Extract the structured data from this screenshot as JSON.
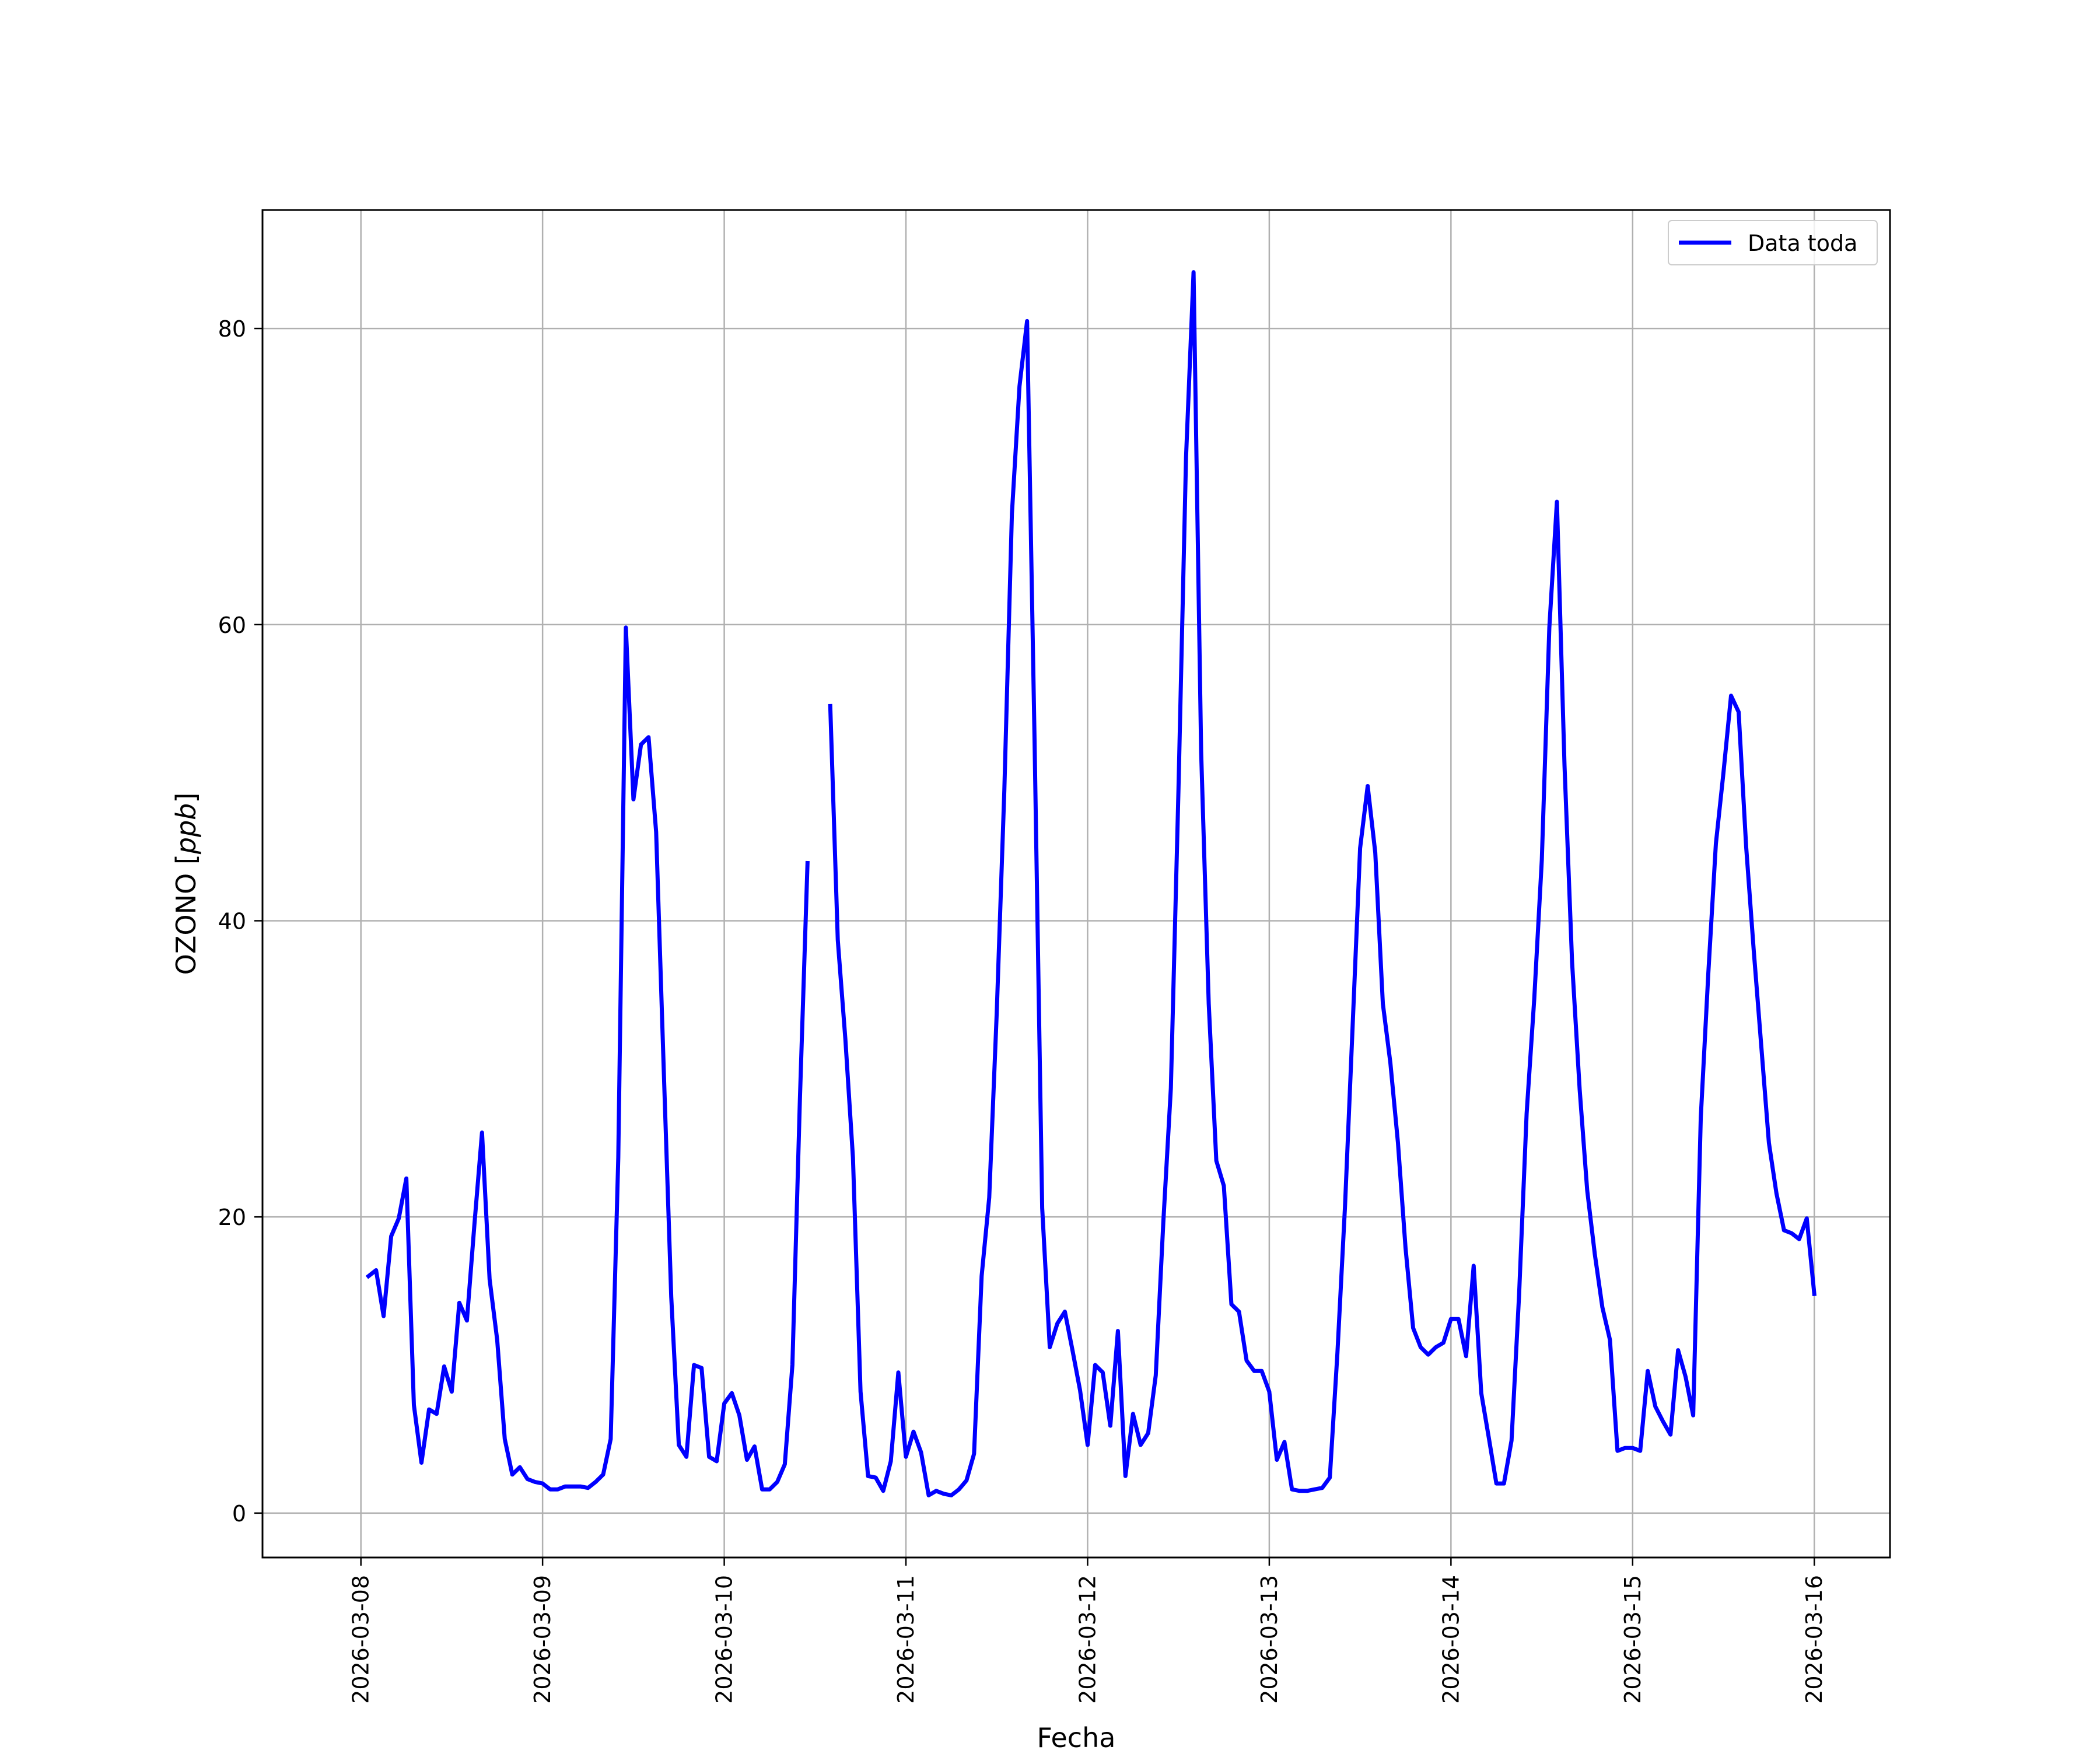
{
  "chart_data": {
    "type": "line",
    "title": "",
    "xlabel": "Fecha",
    "ylabel": "OZONO [ppb]",
    "grid": true,
    "legend_position": "top-right",
    "x_ticks": [
      "2026-03-08",
      "2026-03-09",
      "2026-03-10",
      "2026-03-11",
      "2026-03-12",
      "2026-03-13",
      "2026-03-14",
      "2026-03-15",
      "2026-03-16"
    ],
    "y_ticks": [
      0,
      20,
      40,
      60,
      80
    ],
    "xlim": [
      "2026-03-07 11:00",
      "2026-03-16 10:00"
    ],
    "ylim": [
      -3,
      88
    ],
    "series": [
      {
        "name": "Data toda",
        "color": "#0000ff",
        "segments": [
          [
            [
              "2026-03-08 01:00",
              16.0
            ],
            [
              "2026-03-08 02:00",
              16.4
            ],
            [
              "2026-03-08 03:00",
              13.3
            ],
            [
              "2026-03-08 04:00",
              18.7
            ],
            [
              "2026-03-08 05:00",
              19.9
            ],
            [
              "2026-03-08 06:00",
              22.6
            ],
            [
              "2026-03-08 07:00",
              7.3
            ],
            [
              "2026-03-08 08:00",
              3.4
            ],
            [
              "2026-03-08 09:00",
              7.0
            ],
            [
              "2026-03-08 10:00",
              6.7
            ],
            [
              "2026-03-08 11:00",
              9.9
            ],
            [
              "2026-03-08 12:00",
              8.2
            ],
            [
              "2026-03-08 13:00",
              14.2
            ],
            [
              "2026-03-08 14:00",
              13.0
            ],
            [
              "2026-03-08 15:00",
              19.5
            ],
            [
              "2026-03-08 16:00",
              25.7
            ],
            [
              "2026-03-08 17:00",
              15.8
            ],
            [
              "2026-03-08 18:00",
              11.7
            ],
            [
              "2026-03-08 19:00",
              5.0
            ],
            [
              "2026-03-08 20:00",
              2.6
            ],
            [
              "2026-03-08 21:00",
              3.1
            ],
            [
              "2026-03-08 22:00",
              2.3
            ],
            [
              "2026-03-08 23:00",
              2.1
            ],
            [
              "2026-03-09 00:00",
              2.0
            ],
            [
              "2026-03-09 01:00",
              1.6
            ],
            [
              "2026-03-09 02:00",
              1.6
            ],
            [
              "2026-03-09 03:00",
              1.8
            ],
            [
              "2026-03-09 04:00",
              1.8
            ],
            [
              "2026-03-09 05:00",
              1.8
            ],
            [
              "2026-03-09 06:00",
              1.7
            ],
            [
              "2026-03-09 07:00",
              2.1
            ],
            [
              "2026-03-09 08:00",
              2.6
            ],
            [
              "2026-03-09 09:00",
              5.0
            ],
            [
              "2026-03-09 10:00",
              24.0
            ],
            [
              "2026-03-09 11:00",
              59.8
            ],
            [
              "2026-03-09 12:00",
              48.2
            ],
            [
              "2026-03-09 13:00",
              51.9
            ],
            [
              "2026-03-09 14:00",
              52.4
            ],
            [
              "2026-03-09 15:00",
              46.0
            ],
            [
              "2026-03-09 16:00",
              30.0
            ],
            [
              "2026-03-09 17:00",
              14.6
            ],
            [
              "2026-03-09 18:00",
              4.6
            ],
            [
              "2026-03-09 19:00",
              3.8
            ],
            [
              "2026-03-09 20:00",
              10.0
            ],
            [
              "2026-03-09 21:00",
              9.8
            ],
            [
              "2026-03-09 22:00",
              3.8
            ],
            [
              "2026-03-09 23:00",
              3.5
            ],
            [
              "2026-03-10 00:00",
              7.4
            ],
            [
              "2026-03-10 01:00",
              8.1
            ],
            [
              "2026-03-10 02:00",
              6.6
            ],
            [
              "2026-03-10 03:00",
              3.6
            ],
            [
              "2026-03-10 04:00",
              4.5
            ],
            [
              "2026-03-10 05:00",
              1.6
            ],
            [
              "2026-03-10 06:00",
              1.6
            ],
            [
              "2026-03-10 07:00",
              2.1
            ],
            [
              "2026-03-10 08:00",
              3.3
            ],
            [
              "2026-03-10 09:00",
              10.0
            ],
            [
              "2026-03-10 10:00",
              28.0
            ],
            [
              "2026-03-10 11:00",
              43.9
            ]
          ],
          [
            [
              "2026-03-10 14:00",
              54.5
            ],
            [
              "2026-03-10 15:00",
              38.7
            ],
            [
              "2026-03-10 16:00",
              32.0
            ],
            [
              "2026-03-10 17:00",
              24.0
            ],
            [
              "2026-03-10 18:00",
              8.2
            ],
            [
              "2026-03-10 19:00",
              2.5
            ],
            [
              "2026-03-10 20:00",
              2.4
            ],
            [
              "2026-03-10 21:00",
              1.5
            ],
            [
              "2026-03-10 22:00",
              3.5
            ],
            [
              "2026-03-10 23:00",
              9.5
            ],
            [
              "2026-03-11 00:00",
              3.8
            ],
            [
              "2026-03-11 01:00",
              5.5
            ],
            [
              "2026-03-11 02:00",
              4.1
            ],
            [
              "2026-03-11 03:00",
              1.2
            ],
            [
              "2026-03-11 04:00",
              1.5
            ],
            [
              "2026-03-11 05:00",
              1.3
            ],
            [
              "2026-03-11 06:00",
              1.2
            ],
            [
              "2026-03-11 07:00",
              1.6
            ],
            [
              "2026-03-11 08:00",
              2.2
            ],
            [
              "2026-03-11 09:00",
              4.0
            ],
            [
              "2026-03-11 10:00",
              16.0
            ],
            [
              "2026-03-11 11:00",
              21.3
            ],
            [
              "2026-03-11 12:00",
              33.8
            ],
            [
              "2026-03-11 13:00",
              48.8
            ],
            [
              "2026-03-11 14:00",
              67.5
            ],
            [
              "2026-03-11 15:00",
              76.1
            ],
            [
              "2026-03-11 16:00",
              80.5
            ],
            [
              "2026-03-11 17:00",
              52.0
            ],
            [
              "2026-03-11 18:00",
              20.6
            ],
            [
              "2026-03-11 19:00",
              11.2
            ],
            [
              "2026-03-11 20:00",
              12.8
            ],
            [
              "2026-03-11 21:00",
              13.6
            ],
            [
              "2026-03-11 22:00",
              11.0
            ],
            [
              "2026-03-11 23:00",
              8.3
            ],
            [
              "2026-03-12 00:00",
              4.6
            ],
            [
              "2026-03-12 01:00",
              10.0
            ],
            [
              "2026-03-12 02:00",
              9.5
            ],
            [
              "2026-03-12 03:00",
              5.9
            ],
            [
              "2026-03-12 04:00",
              12.3
            ],
            [
              "2026-03-12 05:00",
              2.5
            ],
            [
              "2026-03-12 06:00",
              6.7
            ],
            [
              "2026-03-12 07:00",
              4.6
            ],
            [
              "2026-03-12 08:00",
              5.4
            ],
            [
              "2026-03-12 09:00",
              9.3
            ],
            [
              "2026-03-12 10:00",
              19.6
            ],
            [
              "2026-03-12 11:00",
              28.7
            ],
            [
              "2026-03-12 12:00",
              48.8
            ],
            [
              "2026-03-12 13:00",
              71.3
            ],
            [
              "2026-03-12 14:00",
              83.8
            ],
            [
              "2026-03-12 15:00",
              51.4
            ],
            [
              "2026-03-12 16:00",
              34.4
            ],
            [
              "2026-03-12 17:00",
              23.8
            ],
            [
              "2026-03-12 18:00",
              22.1
            ],
            [
              "2026-03-12 19:00",
              14.1
            ],
            [
              "2026-03-12 20:00",
              13.6
            ],
            [
              "2026-03-12 21:00",
              10.3
            ],
            [
              "2026-03-12 22:00",
              9.6
            ],
            [
              "2026-03-12 23:00",
              9.6
            ],
            [
              "2026-03-13 00:00",
              8.2
            ],
            [
              "2026-03-13 01:00",
              3.6
            ],
            [
              "2026-03-13 02:00",
              4.8
            ],
            [
              "2026-03-13 03:00",
              1.6
            ],
            [
              "2026-03-13 04:00",
              1.5
            ],
            [
              "2026-03-13 05:00",
              1.5
            ],
            [
              "2026-03-13 06:00",
              1.6
            ],
            [
              "2026-03-13 07:00",
              1.7
            ],
            [
              "2026-03-13 08:00",
              2.4
            ],
            [
              "2026-03-13 09:00",
              10.8
            ],
            [
              "2026-03-13 10:00",
              20.7
            ],
            [
              "2026-03-13 11:00",
              32.8
            ],
            [
              "2026-03-13 12:00",
              44.9
            ],
            [
              "2026-03-13 13:00",
              49.1
            ],
            [
              "2026-03-13 14:00",
              44.6
            ],
            [
              "2026-03-13 15:00",
              34.4
            ],
            [
              "2026-03-13 16:00",
              30.4
            ],
            [
              "2026-03-13 17:00",
              25.0
            ],
            [
              "2026-03-13 18:00",
              17.9
            ],
            [
              "2026-03-13 19:00",
              12.5
            ],
            [
              "2026-03-13 20:00",
              11.2
            ],
            [
              "2026-03-13 21:00",
              10.7
            ],
            [
              "2026-03-13 22:00",
              11.2
            ],
            [
              "2026-03-13 23:00",
              11.5
            ],
            [
              "2026-03-14 00:00",
              13.1
            ],
            [
              "2026-03-14 01:00",
              13.1
            ],
            [
              "2026-03-14 02:00",
              10.6
            ],
            [
              "2026-03-14 03:00",
              16.7
            ],
            [
              "2026-03-14 04:00",
              8.1
            ],
            [
              "2026-03-14 05:00",
              5.1
            ],
            [
              "2026-03-14 06:00",
              2.0
            ],
            [
              "2026-03-14 07:00",
              2.0
            ],
            [
              "2026-03-14 08:00",
              4.9
            ],
            [
              "2026-03-14 09:00",
              14.7
            ],
            [
              "2026-03-14 10:00",
              27.0
            ],
            [
              "2026-03-14 11:00",
              34.7
            ],
            [
              "2026-03-14 12:00",
              44.1
            ],
            [
              "2026-03-14 13:00",
              59.8
            ],
            [
              "2026-03-14 14:00",
              68.3
            ],
            [
              "2026-03-14 15:00",
              50.5
            ],
            [
              "2026-03-14 16:00",
              37.2
            ],
            [
              "2026-03-14 17:00",
              28.6
            ],
            [
              "2026-03-14 18:00",
              21.8
            ],
            [
              "2026-03-14 19:00",
              17.5
            ],
            [
              "2026-03-14 20:00",
              13.9
            ],
            [
              "2026-03-14 21:00",
              11.7
            ],
            [
              "2026-03-14 22:00",
              4.2
            ],
            [
              "2026-03-14 23:00",
              4.4
            ],
            [
              "2026-03-15 00:00",
              4.4
            ],
            [
              "2026-03-15 01:00",
              4.2
            ],
            [
              "2026-03-15 02:00",
              9.6
            ],
            [
              "2026-03-15 03:00",
              7.2
            ],
            [
              "2026-03-15 04:00",
              6.2
            ],
            [
              "2026-03-15 05:00",
              5.3
            ],
            [
              "2026-03-15 06:00",
              11.0
            ],
            [
              "2026-03-15 07:00",
              9.2
            ],
            [
              "2026-03-15 08:00",
              6.6
            ],
            [
              "2026-03-15 09:00",
              26.7
            ],
            [
              "2026-03-15 10:00",
              36.5
            ],
            [
              "2026-03-15 11:00",
              45.2
            ],
            [
              "2026-03-15 12:00",
              50.0
            ],
            [
              "2026-03-15 13:00",
              55.2
            ],
            [
              "2026-03-15 14:00",
              54.1
            ],
            [
              "2026-03-15 15:00",
              45.0
            ],
            [
              "2026-03-15 16:00",
              38.0
            ],
            [
              "2026-03-15 17:00",
              31.5
            ],
            [
              "2026-03-15 18:00",
              25.0
            ],
            [
              "2026-03-15 19:00",
              21.6
            ],
            [
              "2026-03-15 20:00",
              19.1
            ],
            [
              "2026-03-15 21:00",
              18.9
            ],
            [
              "2026-03-15 22:00",
              18.5
            ],
            [
              "2026-03-15 23:00",
              19.9
            ],
            [
              "2026-03-16 00:00",
              14.8
            ]
          ]
        ]
      }
    ]
  }
}
